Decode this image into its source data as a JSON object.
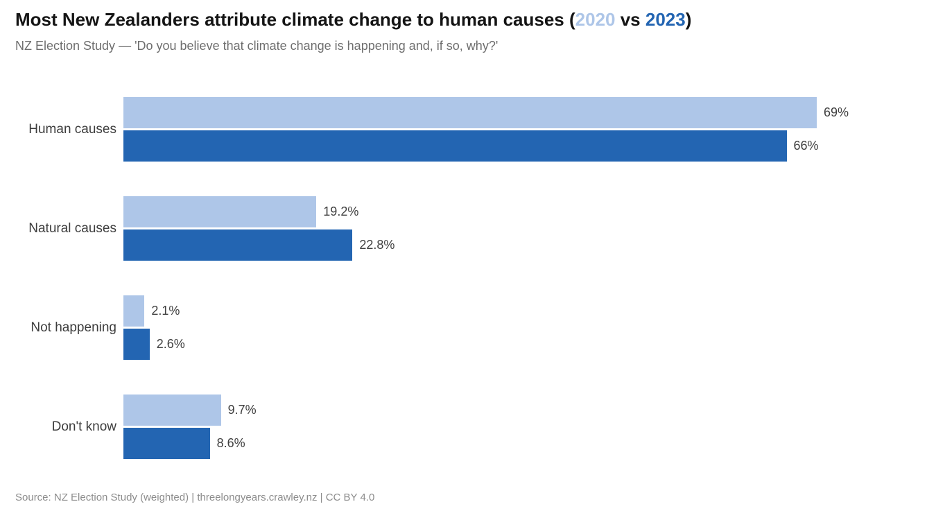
{
  "header": {
    "title_prefix": "Most New Zealanders attribute climate change to human causes (",
    "title_year_2020": "2020",
    "title_vs": " vs ",
    "title_year_2023": "2023",
    "title_suffix": ")",
    "subtitle": "NZ Election Study — 'Do you believe that climate change is happening and, if so, why?'"
  },
  "footer": {
    "source": "Source: NZ Election Study (weighted) | threelongyears.crawley.nz | CC BY 4.0"
  },
  "colors": {
    "series_2020": "#aec6e8",
    "series_2023": "#2365b2",
    "title_text": "#141414",
    "subtitle_text": "#6e6e6e",
    "category_label_text": "#3d3d3d",
    "value_label_text": "#404040",
    "source_text": "#8c8c8c",
    "background": "#ffffff"
  },
  "chart_data": {
    "type": "bar",
    "orientation": "horizontal",
    "title": "Most New Zealanders attribute climate change to human causes (2020 vs 2023)",
    "subtitle": "NZ Election Study — 'Do you believe that climate change is happening and, if so, why?'",
    "source": "Source: NZ Election Study (weighted) | threelongyears.crawley.nz | CC BY 4.0",
    "categories": [
      "Human causes",
      "Natural causes",
      "Not happening",
      "Don't know"
    ],
    "series": [
      {
        "name": "2020",
        "color": "#aec6e8",
        "values": [
          69,
          19.2,
          2.1,
          9.7
        ],
        "labels": [
          "69%",
          "19.2%",
          "2.1%",
          "9.7%"
        ]
      },
      {
        "name": "2023",
        "color": "#2365b2",
        "values": [
          66,
          22.8,
          2.6,
          8.6
        ],
        "labels": [
          "66%",
          "22.8%",
          "2.6%",
          "8.6%"
        ]
      }
    ],
    "xlim": [
      0,
      69
    ],
    "value_labels": true,
    "grid": false,
    "legend_position": "colors referenced inline in title (2020 light blue, 2023 dark blue)"
  }
}
